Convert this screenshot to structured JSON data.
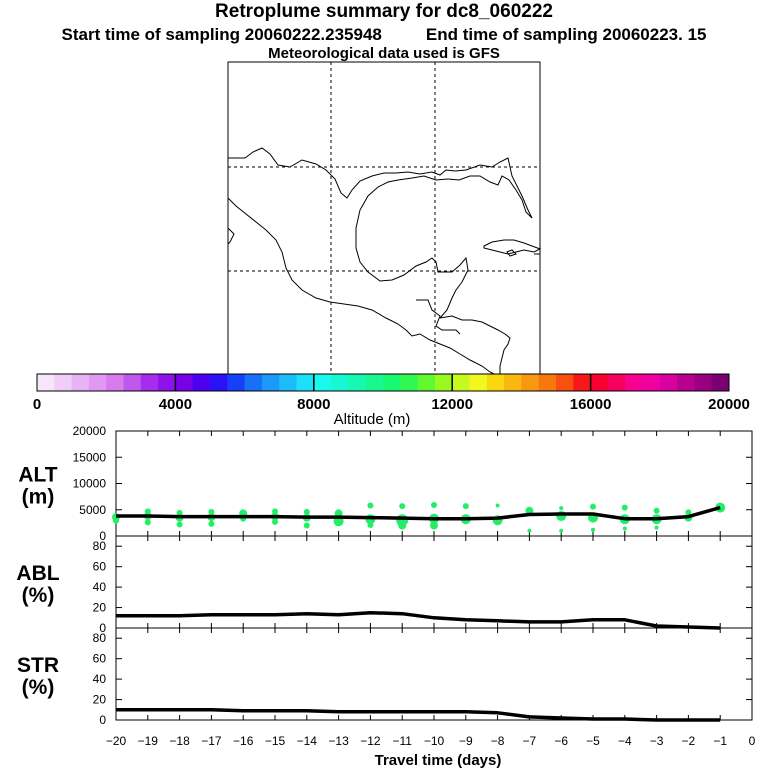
{
  "title": "Retroplume summary for dc8_060222",
  "subtitle_start": "Start time of sampling 20060222.235948",
  "subtitle_end": "End time of sampling 20060223.    15",
  "met_line": "Meteorological data used is GFS",
  "colorbar": {
    "label": "Altitude  (m)",
    "tick_labels": [
      "0",
      "4000",
      "8000",
      "12000",
      "16000",
      "20000"
    ],
    "tick_values": [
      0,
      4000,
      8000,
      12000,
      16000,
      20000
    ],
    "range": [
      0,
      20000
    ],
    "colors": [
      "#f5e6fa",
      "#efcef7",
      "#e6b4f4",
      "#df99f1",
      "#d67cee",
      "#c158ec",
      "#a72ceb",
      "#8f12ec",
      "#7a00e8",
      "#4b00f0",
      "#2a12f5",
      "#1540f8",
      "#1870f8",
      "#1c98f8",
      "#1cbcf8",
      "#1ce0f8",
      "#18f8ec",
      "#18f8d0",
      "#18f8b0",
      "#18f890",
      "#18f870",
      "#30f850",
      "#60f830",
      "#98f820",
      "#c8f820",
      "#f0f820",
      "#f8d810",
      "#f8b810",
      "#f89810",
      "#f87810",
      "#f85010",
      "#f81818",
      "#f80030",
      "#f80060",
      "#f80090",
      "#f000a0",
      "#d800a0",
      "#b80090",
      "#980080",
      "#780070"
    ]
  },
  "chart_data": [
    {
      "type": "scatter+line",
      "name": "ALT",
      "ylabel": "ALT\n(m)",
      "ylabel_top": "ALT",
      "ylabel_bottom": "(m)",
      "ylim": [
        0,
        20000
      ],
      "yticks": [
        0,
        5000,
        10000,
        15000,
        20000
      ],
      "ytick_labels": [
        "0",
        "5000",
        "10000",
        "15000",
        "20000"
      ],
      "line": {
        "x": [
          -20,
          -19,
          -18,
          -17,
          -16,
          -15,
          -14,
          -13,
          -12,
          -11,
          -10,
          -9,
          -8,
          -7,
          -6,
          -5,
          -4,
          -3,
          -2,
          -1
        ],
        "y": [
          3800,
          3800,
          3700,
          3700,
          3700,
          3700,
          3600,
          3600,
          3500,
          3400,
          3300,
          3300,
          3400,
          4100,
          4200,
          4200,
          3300,
          3300,
          3700,
          5400
        ]
      },
      "points": {
        "x": [
          -20,
          -20,
          -19,
          -19,
          -19,
          -18,
          -18,
          -18,
          -17,
          -17,
          -17,
          -16,
          -16,
          -15,
          -15,
          -15,
          -14,
          -14,
          -14,
          -13,
          -13,
          -12,
          -12,
          -12,
          -11,
          -11,
          -11,
          -10,
          -10,
          -10,
          -9,
          -9,
          -8,
          -8,
          -7,
          -7,
          -6,
          -6,
          -6,
          -5,
          -5,
          -5,
          -4,
          -4,
          -4,
          -3,
          -3,
          -3,
          -2,
          -2,
          -1
        ],
        "y": [
          3600,
          2900,
          4700,
          3800,
          2600,
          4400,
          3500,
          2200,
          4600,
          3600,
          2300,
          4300,
          3300,
          4700,
          3700,
          2700,
          4600,
          3500,
          2000,
          4300,
          2800,
          5800,
          3200,
          2100,
          5700,
          3000,
          2000,
          5900,
          3300,
          2000,
          5700,
          3200,
          5800,
          3000,
          4800,
          1000,
          5300,
          3800,
          1000,
          5600,
          3500,
          1200,
          5400,
          3200,
          1400,
          4800,
          3200,
          1600,
          4500,
          3500,
          5400
        ],
        "size": [
          4,
          3,
          3,
          4,
          3,
          3,
          4,
          3,
          3,
          4,
          3,
          4,
          3,
          3,
          4,
          3,
          3,
          4,
          3,
          4,
          5,
          3,
          5,
          3,
          3,
          6,
          4,
          3,
          5,
          4,
          3,
          5,
          2,
          5,
          4,
          2,
          2,
          5,
          2,
          3,
          5,
          2,
          3,
          5,
          2,
          3,
          5,
          2,
          3,
          4,
          5
        ]
      }
    },
    {
      "type": "line",
      "name": "ABL",
      "ylabel_top": "ABL",
      "ylabel_bottom": "(%)",
      "ylim": [
        0,
        90
      ],
      "yticks": [
        0,
        20,
        40,
        60,
        80
      ],
      "ytick_labels": [
        "0",
        "20",
        "40",
        "60",
        "80"
      ],
      "x": [
        -20,
        -19,
        -18,
        -17,
        -16,
        -15,
        -14,
        -13,
        -12,
        -11,
        -10,
        -9,
        -8,
        -7,
        -6,
        -5,
        -4,
        -3,
        -2,
        -1
      ],
      "y": [
        12,
        12,
        12,
        13,
        13,
        13,
        14,
        13,
        15,
        14,
        10,
        8,
        7,
        6,
        6,
        8,
        8,
        2,
        1,
        0
      ]
    },
    {
      "type": "line",
      "name": "STR",
      "ylabel_top": "STR",
      "ylabel_bottom": "(%)",
      "ylim": [
        0,
        90
      ],
      "yticks": [
        0,
        20,
        40,
        60,
        80
      ],
      "ytick_labels": [
        "0",
        "20",
        "40",
        "60",
        "80"
      ],
      "x": [
        -20,
        -19,
        -18,
        -17,
        -16,
        -15,
        -14,
        -13,
        -12,
        -11,
        -10,
        -9,
        -8,
        -7,
        -6,
        -5,
        -4,
        -3,
        -2,
        -1
      ],
      "y": [
        10,
        10,
        10,
        10,
        9,
        9,
        9,
        8,
        8,
        8,
        8,
        8,
        7,
        3,
        2,
        1,
        1,
        0,
        0,
        0
      ]
    }
  ],
  "xaxis": {
    "label": "Travel time (days)",
    "range": [
      -20,
      0
    ],
    "ticks": [
      -20,
      -19,
      -18,
      -17,
      -16,
      -15,
      -14,
      -13,
      -12,
      -11,
      -10,
      -9,
      -8,
      -7,
      -6,
      -5,
      -4,
      -3,
      -2,
      -1,
      0
    ],
    "tick_labels": [
      "−20",
      "−19",
      "−18",
      "−17",
      "−16",
      "−15",
      "−14",
      "−13",
      "−12",
      "−11",
      "−10",
      "−9",
      "−8",
      "−7",
      "−6",
      "−5",
      "−4",
      "−3",
      "−2",
      "−1",
      "0"
    ]
  },
  "colors": {
    "axis": "#000000",
    "line": "#000000",
    "points": "#22ee66",
    "grid": "#000000"
  }
}
